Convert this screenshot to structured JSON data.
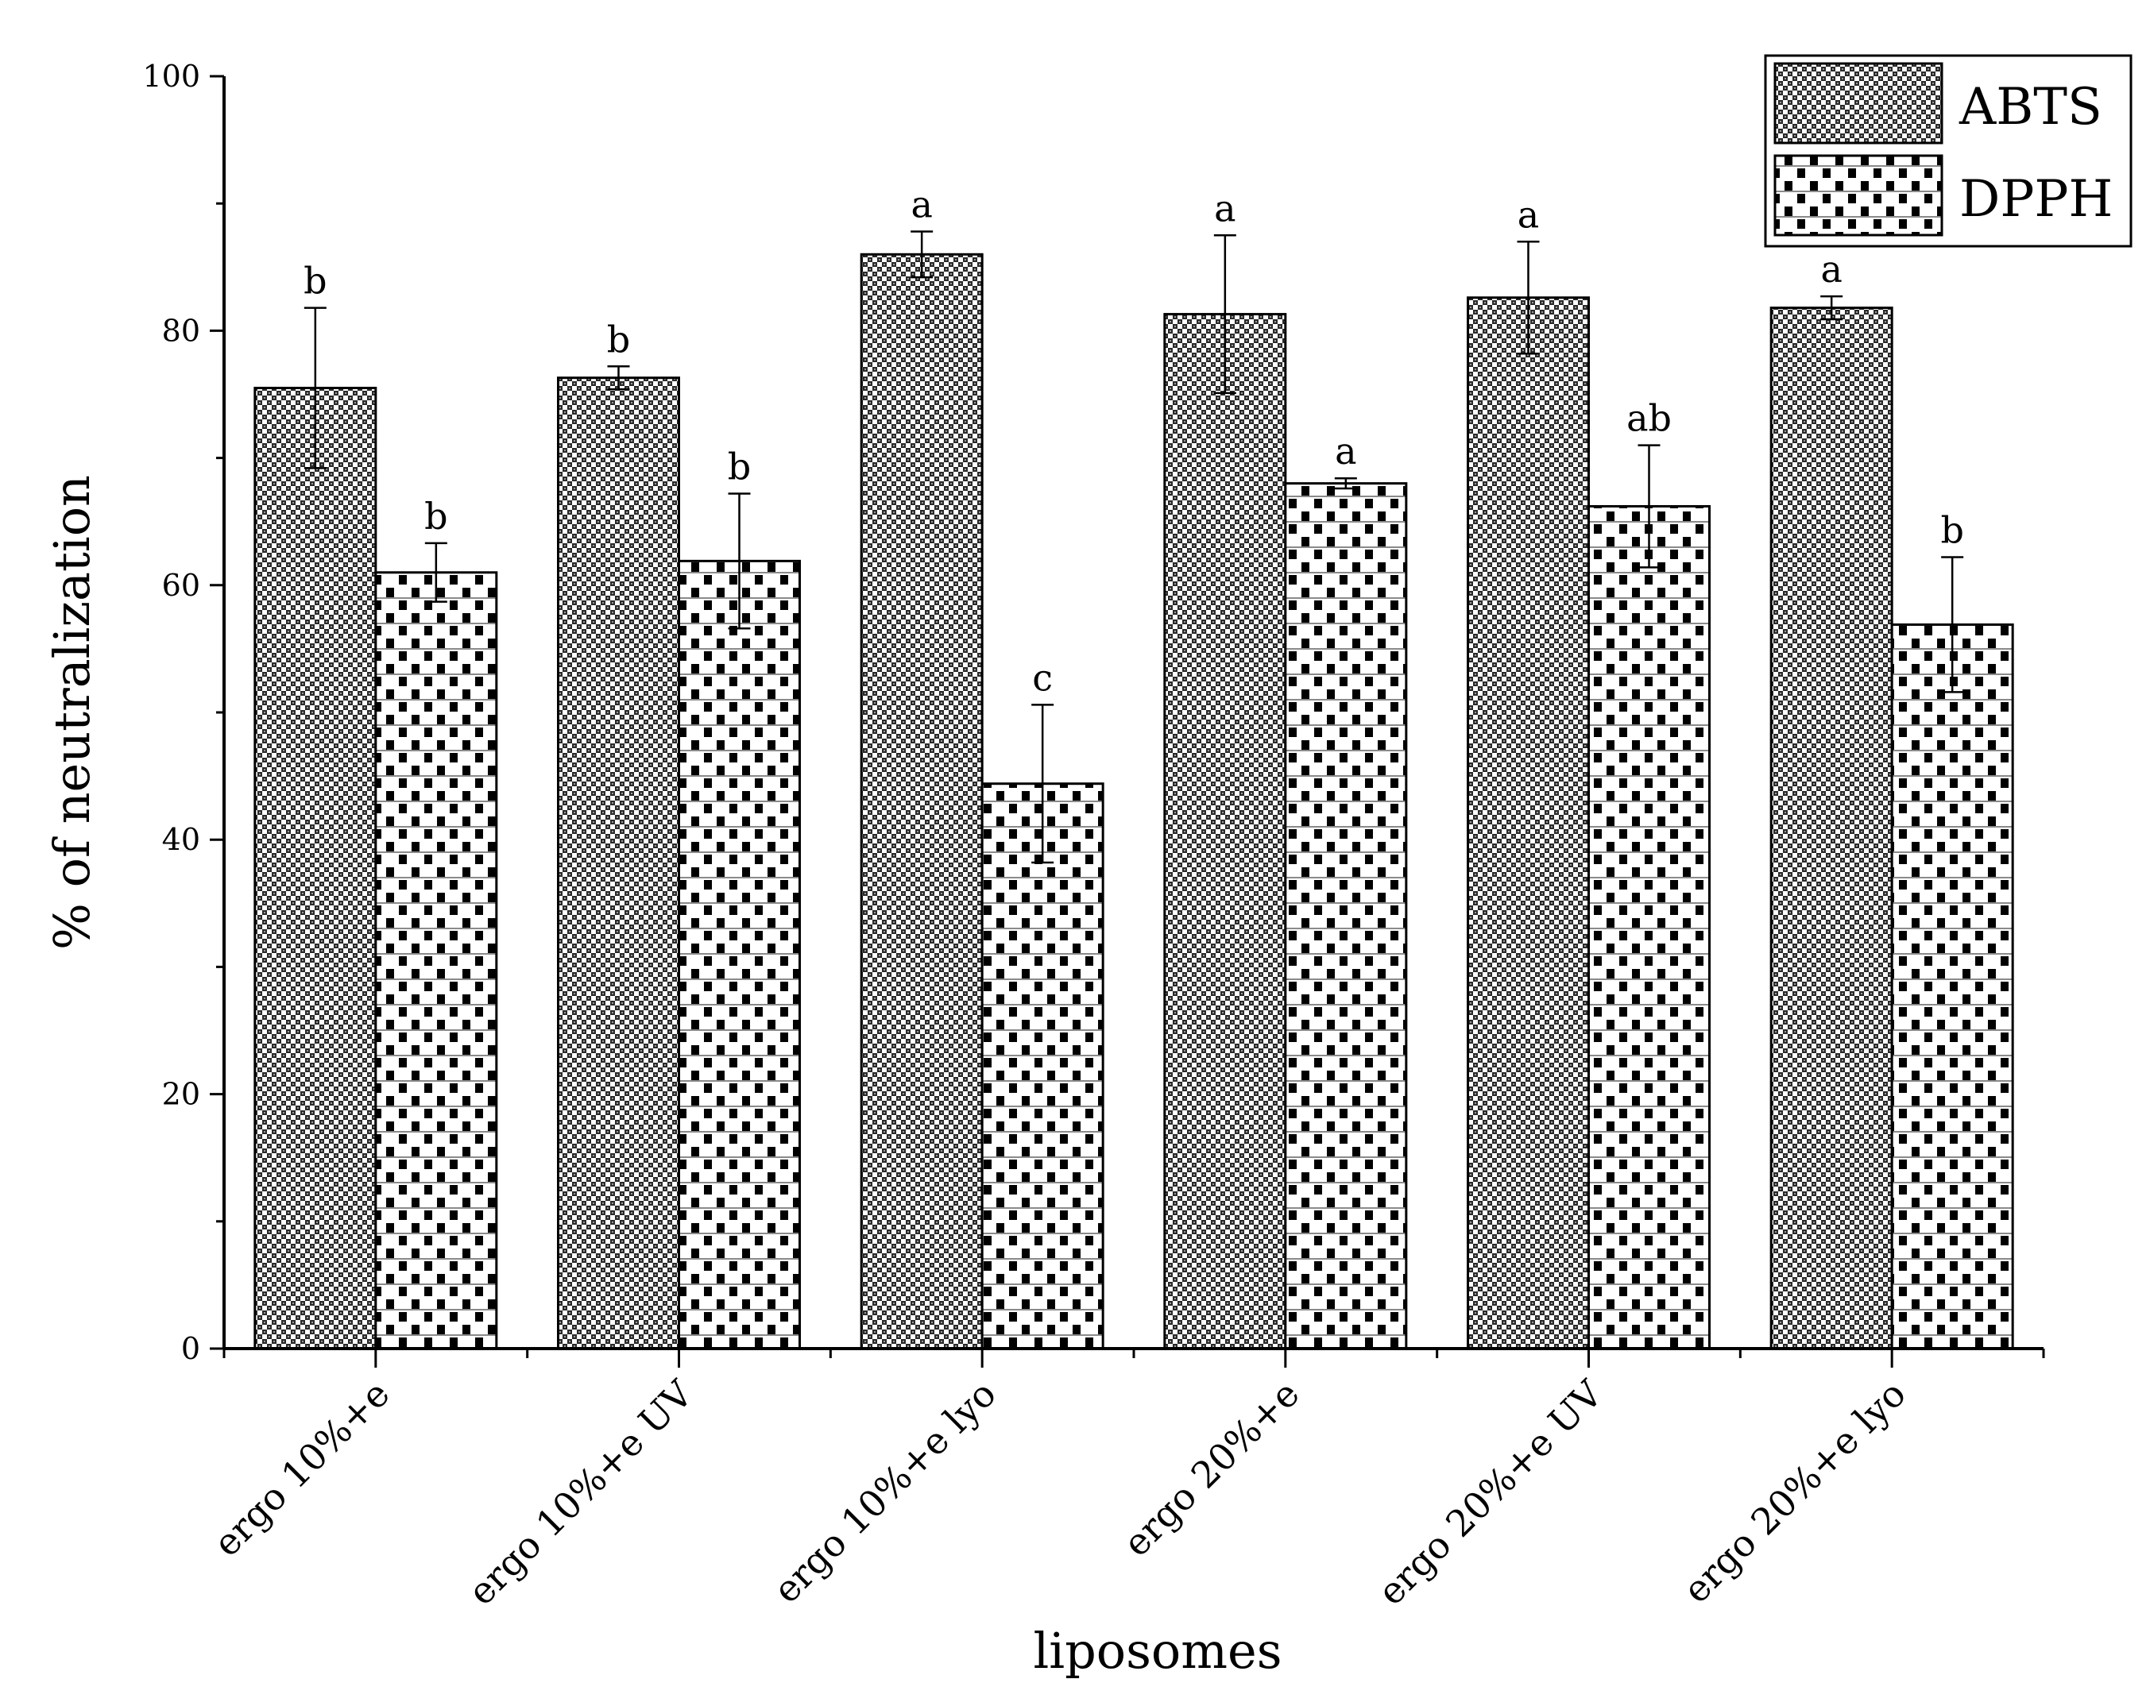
{
  "chart_data": {
    "type": "bar",
    "xlabel": "liposomes",
    "ylabel": "% of neutralization",
    "ylim": [
      0,
      100
    ],
    "yticks": [
      0,
      20,
      40,
      60,
      80,
      100
    ],
    "grid": false,
    "legend_position": "top-right",
    "categories": [
      "ergo 10%+e",
      "ergo 10%+e UV",
      "ergo 10%+e lyo",
      "ergo 20%+e",
      "ergo 20%+e UV",
      "ergo 20%+e lyo"
    ],
    "series": [
      {
        "name": "ABTS",
        "pattern": "fine-checker",
        "values": [
          75.5,
          76.3,
          86.0,
          81.3,
          82.6,
          81.8
        ],
        "errors": [
          6.3,
          0.9,
          1.8,
          6.2,
          4.4,
          0.9
        ],
        "labels": [
          "b",
          "b",
          "a",
          "a",
          "a",
          "a"
        ]
      },
      {
        "name": "DPPH",
        "pattern": "coarse-checker",
        "values": [
          61.0,
          61.9,
          44.4,
          68.0,
          66.2,
          56.9
        ],
        "errors": [
          2.3,
          5.3,
          6.2,
          0.4,
          4.8,
          5.3
        ],
        "labels": [
          "b",
          "b",
          "c",
          "a",
          "ab",
          "b"
        ]
      }
    ]
  }
}
